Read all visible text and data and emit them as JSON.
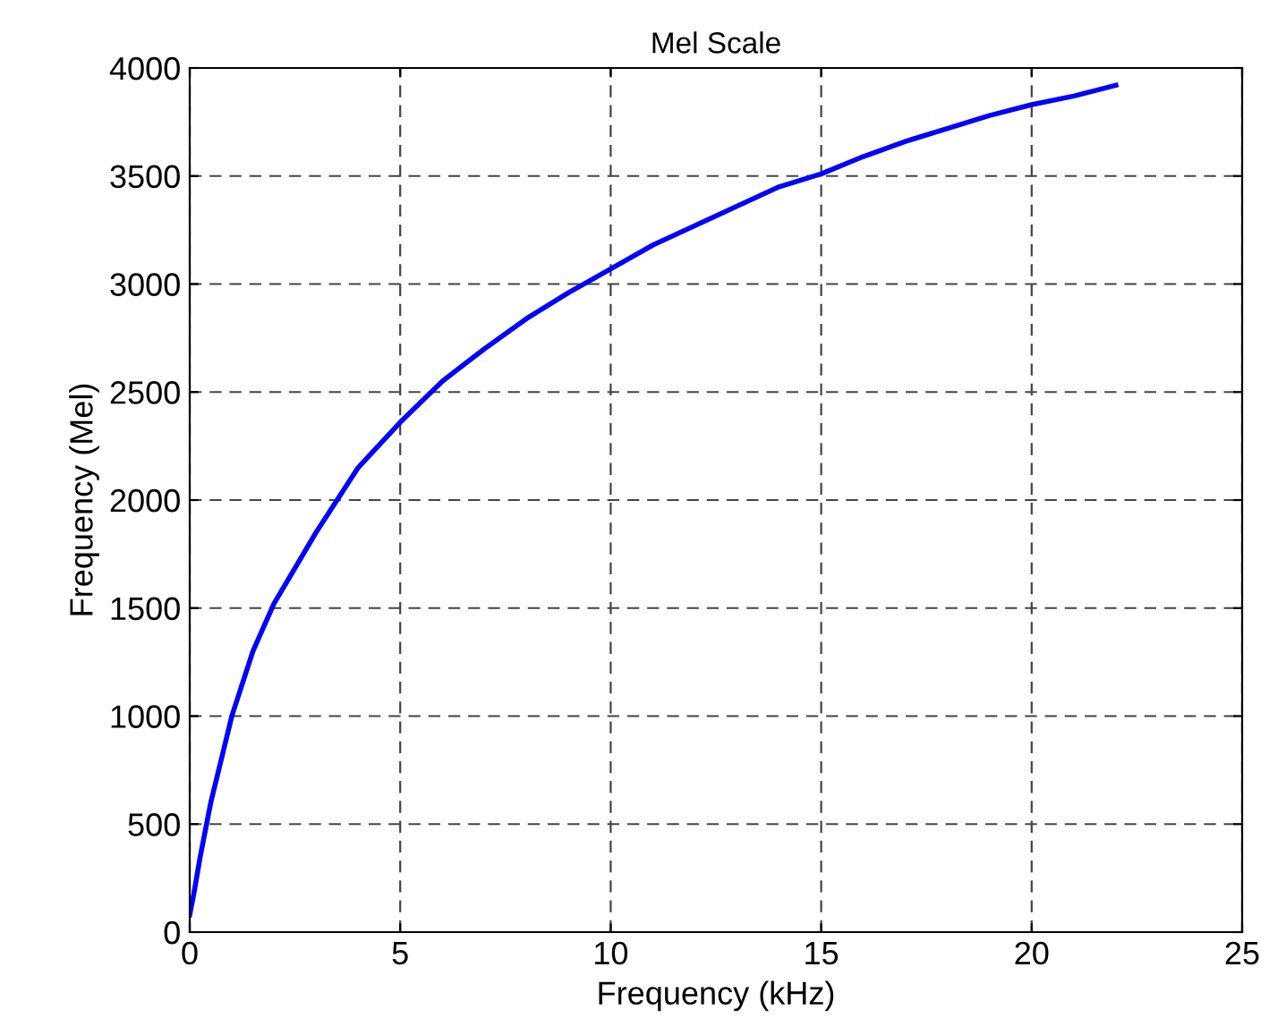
{
  "chart_data": {
    "type": "line",
    "title": "Mel Scale",
    "xlabel": "Frequency (kHz)",
    "ylabel": "Frequency (Mel)",
    "x": [
      0,
      0.1,
      0.25,
      0.5,
      0.75,
      1,
      1.5,
      2,
      3,
      4,
      5,
      6,
      7,
      8,
      9,
      10,
      11,
      12,
      13,
      14,
      15,
      16,
      17,
      18,
      19,
      20,
      21,
      22
    ],
    "series": [
      {
        "color": "#0000ff",
        "values": [
          80,
          180,
          350,
          600,
          800,
          1000,
          1300,
          1520,
          1850,
          2150,
          2360,
          2550,
          2700,
          2840,
          2960,
          3070,
          3180,
          3270,
          3360,
          3450,
          3510,
          3590,
          3660,
          3720,
          3780,
          3830,
          3870,
          3920
        ]
      }
    ],
    "xlim": [
      0,
      25
    ],
    "ylim": [
      0,
      4000
    ],
    "xticks": [
      0,
      5,
      10,
      15,
      20,
      25
    ],
    "yticks": [
      0,
      500,
      1000,
      1500,
      2000,
      2500,
      3000,
      3500,
      4000
    ],
    "grid": true,
    "line_style": "solid",
    "legend": false
  }
}
